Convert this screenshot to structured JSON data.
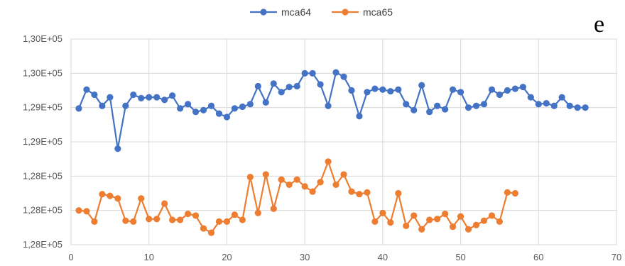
{
  "panel_label": "e",
  "chart_data": {
    "type": "line",
    "title": "",
    "xlabel": "",
    "ylabel": "",
    "xlim": [
      0,
      70
    ],
    "ylim": [
      127800,
      130200
    ],
    "x_ticks": [
      0,
      10,
      20,
      30,
      40,
      50,
      60,
      70
    ],
    "x_tick_labels": [
      "0",
      "10",
      "20",
      "30",
      "40",
      "50",
      "60",
      "70"
    ],
    "y_ticks": [
      127800,
      128200,
      128600,
      129000,
      129400,
      129800,
      130200
    ],
    "y_tick_labels": [
      "1,28E+05",
      "1,28E+05",
      "1,28E+05",
      "1,29E+05",
      "1,29E+05",
      "1,30E+05",
      "1,30E+05"
    ],
    "grid": true,
    "legend_position": "top",
    "series": [
      {
        "name": "mca64",
        "color": "#4472C4",
        "x": [
          1,
          2,
          3,
          4,
          5,
          6,
          7,
          8,
          9,
          10,
          11,
          12,
          13,
          14,
          15,
          16,
          17,
          18,
          19,
          20,
          21,
          22,
          23,
          24,
          25,
          26,
          27,
          28,
          29,
          30,
          31,
          32,
          33,
          34,
          35,
          36,
          37,
          38,
          39,
          40,
          41,
          42,
          43,
          44,
          45,
          46,
          47,
          48,
          49,
          50,
          51,
          52,
          53,
          54,
          55,
          56,
          57,
          58,
          59,
          60,
          61,
          62,
          63,
          64,
          65,
          66
        ],
        "values": [
          129390,
          129610,
          129550,
          129420,
          129520,
          128920,
          129420,
          129550,
          129510,
          129520,
          129520,
          129490,
          129540,
          129390,
          129440,
          129350,
          129370,
          129420,
          129330,
          129290,
          129390,
          129410,
          129440,
          129650,
          129460,
          129680,
          129580,
          129640,
          129650,
          129800,
          129800,
          129670,
          129420,
          129810,
          129760,
          129600,
          129300,
          129580,
          129620,
          129610,
          129590,
          129610,
          129440,
          129370,
          129660,
          129350,
          129420,
          129380,
          129610,
          129580,
          129400,
          129420,
          129440,
          129610,
          129550,
          129600,
          129620,
          129640,
          129520,
          129440,
          129450,
          129420,
          129520,
          129420,
          129400,
          129400
        ]
      },
      {
        "name": "mca65",
        "color": "#ED7D31",
        "x": [
          1,
          2,
          3,
          4,
          5,
          6,
          7,
          8,
          9,
          10,
          11,
          12,
          13,
          14,
          15,
          16,
          17,
          18,
          19,
          20,
          21,
          22,
          23,
          24,
          25,
          26,
          27,
          28,
          29,
          30,
          31,
          32,
          33,
          34,
          35,
          36,
          37,
          38,
          39,
          40,
          41,
          42,
          43,
          44,
          45,
          46,
          47,
          48,
          49,
          50,
          51,
          52,
          53,
          54,
          55,
          56,
          57
        ],
        "values": [
          128200,
          128190,
          128070,
          128390,
          128370,
          128340,
          128080,
          128070,
          128340,
          128100,
          128100,
          128280,
          128090,
          128090,
          128160,
          128140,
          127990,
          127940,
          128070,
          128070,
          128150,
          128090,
          128590,
          128170,
          128620,
          128220,
          128560,
          128500,
          128560,
          128480,
          128420,
          128530,
          128770,
          128500,
          128620,
          128420,
          128390,
          128410,
          128070,
          128170,
          128060,
          128400,
          128020,
          128140,
          127980,
          128090,
          128100,
          128160,
          128010,
          128130,
          127980,
          128030,
          128080,
          128140,
          128070,
          128410,
          128400
        ]
      }
    ]
  }
}
